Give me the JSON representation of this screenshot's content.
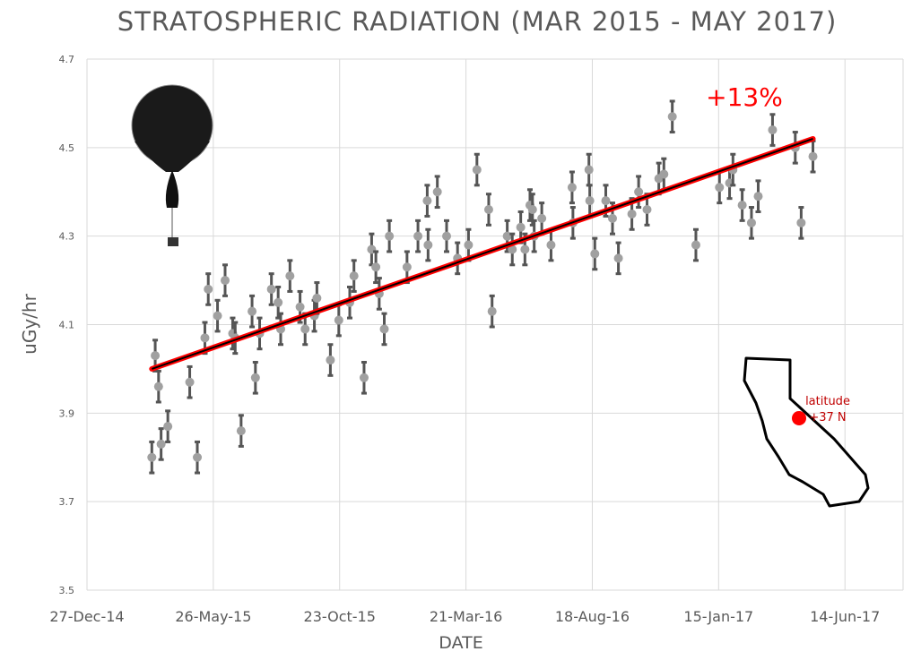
{
  "chart_data": {
    "type": "scatter",
    "title": "STRATOSPHERIC RADIATION (MAR 2015 - MAY 2017)",
    "xlabel": "DATE",
    "ylabel": "uGy/hr",
    "xlim": [
      "2014-12-27",
      "2017-08-22"
    ],
    "xticks": [
      "2014-12-27",
      "2015-05-26",
      "2015-10-23",
      "2016-03-21",
      "2016-08-18",
      "2017-01-15",
      "2017-06-14"
    ],
    "xtick_labels": [
      "27-Dec-14",
      "26-May-15",
      "23-Oct-15",
      "21-Mar-16",
      "18-Aug-16",
      "15-Jan-17",
      "14-Jun-17"
    ],
    "ylim": [
      3.5,
      4.7
    ],
    "yticks": [
      3.5,
      3.7,
      3.9,
      4.1,
      4.3,
      4.5,
      4.7
    ],
    "ytick_labels": [
      "3.5",
      "3.7",
      "3.9",
      "4.1",
      "4.3",
      "4.5",
      "4.7"
    ],
    "grid": true,
    "error": 0.035,
    "points": [
      [
        "2015-03-14",
        3.8
      ],
      [
        "2015-03-18",
        4.03
      ],
      [
        "2015-03-22",
        3.96
      ],
      [
        "2015-03-25",
        3.83
      ],
      [
        "2015-04-02",
        3.87
      ],
      [
        "2015-04-28",
        3.97
      ],
      [
        "2015-05-07",
        3.8
      ],
      [
        "2015-05-16",
        4.07
      ],
      [
        "2015-05-20",
        4.18
      ],
      [
        "2015-05-31",
        4.12
      ],
      [
        "2015-06-09",
        4.2
      ],
      [
        "2015-06-18",
        4.08
      ],
      [
        "2015-06-21",
        4.07
      ],
      [
        "2015-06-28",
        3.86
      ],
      [
        "2015-07-11",
        4.13
      ],
      [
        "2015-07-15",
        3.98
      ],
      [
        "2015-07-20",
        4.08
      ],
      [
        "2015-08-03",
        4.18
      ],
      [
        "2015-08-11",
        4.15
      ],
      [
        "2015-08-14",
        4.09
      ],
      [
        "2015-08-25",
        4.21
      ],
      [
        "2015-09-06",
        4.14
      ],
      [
        "2015-09-12",
        4.09
      ],
      [
        "2015-09-23",
        4.12
      ],
      [
        "2015-09-26",
        4.16
      ],
      [
        "2015-10-12",
        4.02
      ],
      [
        "2015-10-22",
        4.11
      ],
      [
        "2015-11-04",
        4.15
      ],
      [
        "2015-11-09",
        4.21
      ],
      [
        "2015-11-21",
        3.98
      ],
      [
        "2015-11-30",
        4.27
      ],
      [
        "2015-12-05",
        4.23
      ],
      [
        "2015-12-09",
        4.17
      ],
      [
        "2015-12-15",
        4.09
      ],
      [
        "2015-12-21",
        4.3
      ],
      [
        "2016-01-11",
        4.23
      ],
      [
        "2016-01-24",
        4.3
      ],
      [
        "2016-02-04",
        4.38
      ],
      [
        "2016-02-05",
        4.28
      ],
      [
        "2016-02-16",
        4.4
      ],
      [
        "2016-02-27",
        4.3
      ],
      [
        "2016-03-11",
        4.25
      ],
      [
        "2016-03-24",
        4.28
      ],
      [
        "2016-04-03",
        4.45
      ],
      [
        "2016-04-17",
        4.36
      ],
      [
        "2016-04-21",
        4.13
      ],
      [
        "2016-05-09",
        4.3
      ],
      [
        "2016-05-15",
        4.27
      ],
      [
        "2016-05-25",
        4.32
      ],
      [
        "2016-05-30",
        4.27
      ],
      [
        "2016-06-05",
        4.37
      ],
      [
        "2016-06-08",
        4.36
      ],
      [
        "2016-06-10",
        4.3
      ],
      [
        "2016-06-19",
        4.34
      ],
      [
        "2016-06-30",
        4.28
      ],
      [
        "2016-07-25",
        4.41
      ],
      [
        "2016-07-26",
        4.33
      ],
      [
        "2016-08-14",
        4.45
      ],
      [
        "2016-08-15",
        4.38
      ],
      [
        "2016-08-21",
        4.26
      ],
      [
        "2016-09-03",
        4.38
      ],
      [
        "2016-09-11",
        4.34
      ],
      [
        "2016-09-18",
        4.25
      ],
      [
        "2016-10-04",
        4.35
      ],
      [
        "2016-10-12",
        4.4
      ],
      [
        "2016-10-22",
        4.36
      ],
      [
        "2016-11-05",
        4.43
      ],
      [
        "2016-11-11",
        4.44
      ],
      [
        "2016-11-21",
        4.57
      ],
      [
        "2016-12-19",
        4.28
      ],
      [
        "2017-01-16",
        4.41
      ],
      [
        "2017-01-28",
        4.42
      ],
      [
        "2017-02-01",
        4.45
      ],
      [
        "2017-02-12",
        4.37
      ],
      [
        "2017-02-23",
        4.33
      ],
      [
        "2017-03-03",
        4.39
      ],
      [
        "2017-03-20",
        4.54
      ],
      [
        "2017-04-16",
        4.5
      ],
      [
        "2017-04-23",
        4.33
      ],
      [
        "2017-05-07",
        4.48
      ]
    ],
    "trendline": [
      [
        "2015-03-14",
        4.0
      ],
      [
        "2017-05-07",
        4.52
      ]
    ],
    "annotations": {
      "change": "+13%",
      "latitude_line1": "latitude",
      "latitude_line2": "+37 N"
    },
    "colors": {
      "point": "#a0a0a0",
      "errorbar": "#555555",
      "trend": "#000000",
      "trend_glow": "#ff0000",
      "annotation": "#ff0000",
      "grid": "#d9d9d9"
    }
  }
}
